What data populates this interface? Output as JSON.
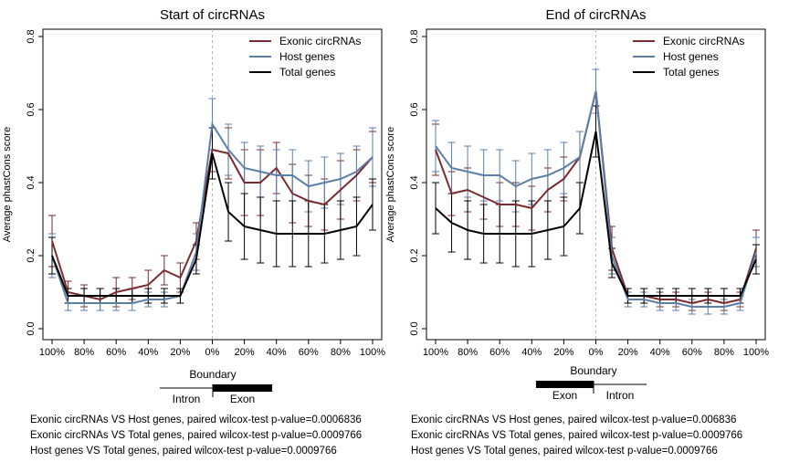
{
  "chart_data": [
    {
      "type": "line",
      "title": "Start of circRNAs",
      "ylabel": "Average phastCons score",
      "xlabel": "",
      "x_tick_labels": [
        "100%",
        "80%",
        "60%",
        "40%",
        "20%",
        "0%",
        "20%",
        "40%",
        "60%",
        "80%",
        "100%"
      ],
      "y_tick_labels": [
        "0.0",
        "0.2",
        "0.4",
        "0.6",
        "0.8"
      ],
      "ylim": [
        -0.03,
        0.82
      ],
      "grid": false,
      "legend_position": "top-right",
      "boundary_index": 10,
      "colors": {
        "exonic": "#7b2a2f",
        "host": "#5b7fa8",
        "total": "#000000"
      },
      "series": [
        {
          "name": "Exonic circRNAs",
          "key": "exonic",
          "values": [
            0.24,
            0.1,
            0.09,
            0.08,
            0.1,
            0.11,
            0.12,
            0.16,
            0.14,
            0.24,
            0.49,
            0.48,
            0.4,
            0.4,
            0.44,
            0.37,
            0.35,
            0.34,
            0.38,
            0.42,
            0.47
          ],
          "err": [
            0.07,
            0.03,
            0.03,
            0.03,
            0.04,
            0.03,
            0.04,
            0.04,
            0.04,
            0.05,
            0.06,
            0.07,
            0.09,
            0.09,
            0.07,
            0.08,
            0.07,
            0.07,
            0.08,
            0.07,
            0.07
          ]
        },
        {
          "name": "Host genes",
          "key": "host",
          "values": [
            0.2,
            0.07,
            0.07,
            0.07,
            0.07,
            0.07,
            0.08,
            0.08,
            0.09,
            0.21,
            0.56,
            0.49,
            0.44,
            0.43,
            0.42,
            0.42,
            0.39,
            0.4,
            0.41,
            0.43,
            0.47
          ],
          "err": [
            0.06,
            0.02,
            0.02,
            0.02,
            0.02,
            0.02,
            0.02,
            0.02,
            0.02,
            0.05,
            0.07,
            0.07,
            0.07,
            0.07,
            0.07,
            0.07,
            0.07,
            0.07,
            0.07,
            0.07,
            0.08
          ]
        },
        {
          "name": "Total genes",
          "key": "total",
          "values": [
            0.2,
            0.09,
            0.09,
            0.09,
            0.09,
            0.09,
            0.09,
            0.09,
            0.09,
            0.19,
            0.48,
            0.32,
            0.28,
            0.27,
            0.26,
            0.26,
            0.26,
            0.26,
            0.27,
            0.28,
            0.34
          ],
          "err": [
            0.05,
            0.02,
            0.02,
            0.02,
            0.02,
            0.02,
            0.02,
            0.02,
            0.02,
            0.04,
            0.07,
            0.08,
            0.09,
            0.09,
            0.09,
            0.09,
            0.09,
            0.08,
            0.08,
            0.08,
            0.07
          ]
        }
      ],
      "boundary": {
        "label": "Boundary",
        "left_label": "Intron",
        "right_label": "Exon",
        "thick_side": "right"
      },
      "stats": [
        "Exonic circRNAs VS Host genes, paired wilcox-test p-value=0.0006836",
        "Exonic circRNAs VS Total genes, paired wilcox-test p-value=0.0009766",
        "Host genes VS Total genes, paired wilcox-test p-value=0.0009766"
      ]
    },
    {
      "type": "line",
      "title": "End of circRNAs",
      "ylabel": "Average phastCons score",
      "xlabel": "",
      "x_tick_labels": [
        "100%",
        "80%",
        "60%",
        "40%",
        "20%",
        "0%",
        "20%",
        "40%",
        "60%",
        "80%",
        "100%"
      ],
      "y_tick_labels": [
        "0.0",
        "0.2",
        "0.4",
        "0.6",
        "0.8"
      ],
      "ylim": [
        -0.03,
        0.82
      ],
      "grid": false,
      "legend_position": "top-right",
      "boundary_index": 10,
      "colors": {
        "exonic": "#7b2a2f",
        "host": "#5b7fa8",
        "total": "#000000"
      },
      "series": [
        {
          "name": "Exonic circRNAs",
          "key": "exonic",
          "values": [
            0.49,
            0.37,
            0.38,
            0.36,
            0.34,
            0.34,
            0.33,
            0.38,
            0.41,
            0.47,
            0.65,
            0.22,
            0.09,
            0.09,
            0.08,
            0.08,
            0.07,
            0.08,
            0.07,
            0.08,
            0.22
          ],
          "err": [
            0.07,
            0.06,
            0.06,
            0.06,
            0.06,
            0.06,
            0.06,
            0.06,
            0.06,
            0.07,
            0.06,
            0.06,
            0.02,
            0.02,
            0.02,
            0.02,
            0.02,
            0.02,
            0.02,
            0.02,
            0.05
          ]
        },
        {
          "name": "Host genes",
          "key": "host",
          "values": [
            0.5,
            0.44,
            0.43,
            0.42,
            0.42,
            0.39,
            0.41,
            0.42,
            0.44,
            0.47,
            0.65,
            0.2,
            0.08,
            0.08,
            0.07,
            0.07,
            0.06,
            0.06,
            0.06,
            0.07,
            0.21
          ],
          "err": [
            0.07,
            0.07,
            0.07,
            0.07,
            0.07,
            0.07,
            0.07,
            0.07,
            0.07,
            0.07,
            0.06,
            0.05,
            0.02,
            0.02,
            0.02,
            0.02,
            0.02,
            0.02,
            0.02,
            0.02,
            0.04
          ]
        },
        {
          "name": "Total genes",
          "key": "total",
          "values": [
            0.33,
            0.29,
            0.27,
            0.26,
            0.26,
            0.26,
            0.26,
            0.27,
            0.28,
            0.33,
            0.54,
            0.18,
            0.09,
            0.09,
            0.09,
            0.09,
            0.09,
            0.09,
            0.09,
            0.09,
            0.19
          ],
          "err": [
            0.07,
            0.08,
            0.08,
            0.08,
            0.08,
            0.09,
            0.09,
            0.08,
            0.08,
            0.07,
            0.07,
            0.04,
            0.02,
            0.02,
            0.02,
            0.02,
            0.02,
            0.02,
            0.02,
            0.02,
            0.04
          ]
        }
      ],
      "boundary": {
        "label": "Boundary",
        "left_label": "Exon",
        "right_label": "Intron",
        "thick_side": "left"
      },
      "stats": [
        "Exonic circRNAs VS Host genes, paired wilcox-test p-value=0.006836",
        "Exonic circRNAs VS Total genes, paired wilcox-test p-value=0.0009766",
        "Host genes VS Total genes, paired wilcox-test p-value=0.0009766"
      ]
    }
  ]
}
